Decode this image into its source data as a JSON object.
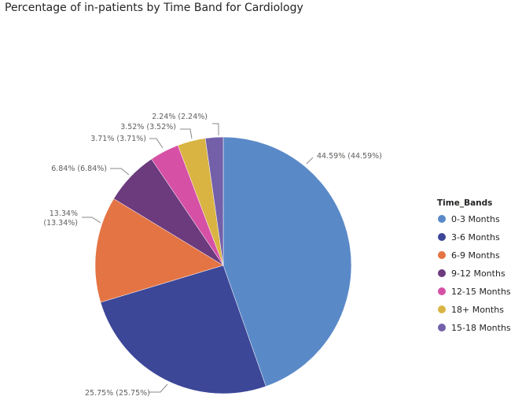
{
  "chart_data": {
    "type": "pie",
    "title": "Percentage of in-patients by Time Band for Cardiology",
    "legend_title": "Time_Bands",
    "legend_position": "right",
    "slices": [
      {
        "name": "0-3 Months",
        "value": 44.59,
        "label": "44.59% (44.59%)",
        "color": "#5a89c8"
      },
      {
        "name": "3-6 Months",
        "value": 25.75,
        "label": "25.75% (25.75%)",
        "color": "#3c4798"
      },
      {
        "name": "6-9 Months",
        "value": 13.34,
        "label": "13.34% (13.34%)",
        "color": "#e47443"
      },
      {
        "name": "9-12 Months",
        "value": 6.84,
        "label": "6.84% (6.84%)",
        "color": "#6b3b7e"
      },
      {
        "name": "12-15 Months",
        "value": 3.71,
        "label": "3.71% (3.71%)",
        "color": "#d651a5"
      },
      {
        "name": "18+ Months",
        "value": 3.52,
        "label": "3.52% (3.52%)",
        "color": "#d9b443"
      },
      {
        "name": "15-18 Months",
        "value": 2.24,
        "label": "2.24% (2.24%)",
        "color": "#7360a9"
      }
    ]
  }
}
